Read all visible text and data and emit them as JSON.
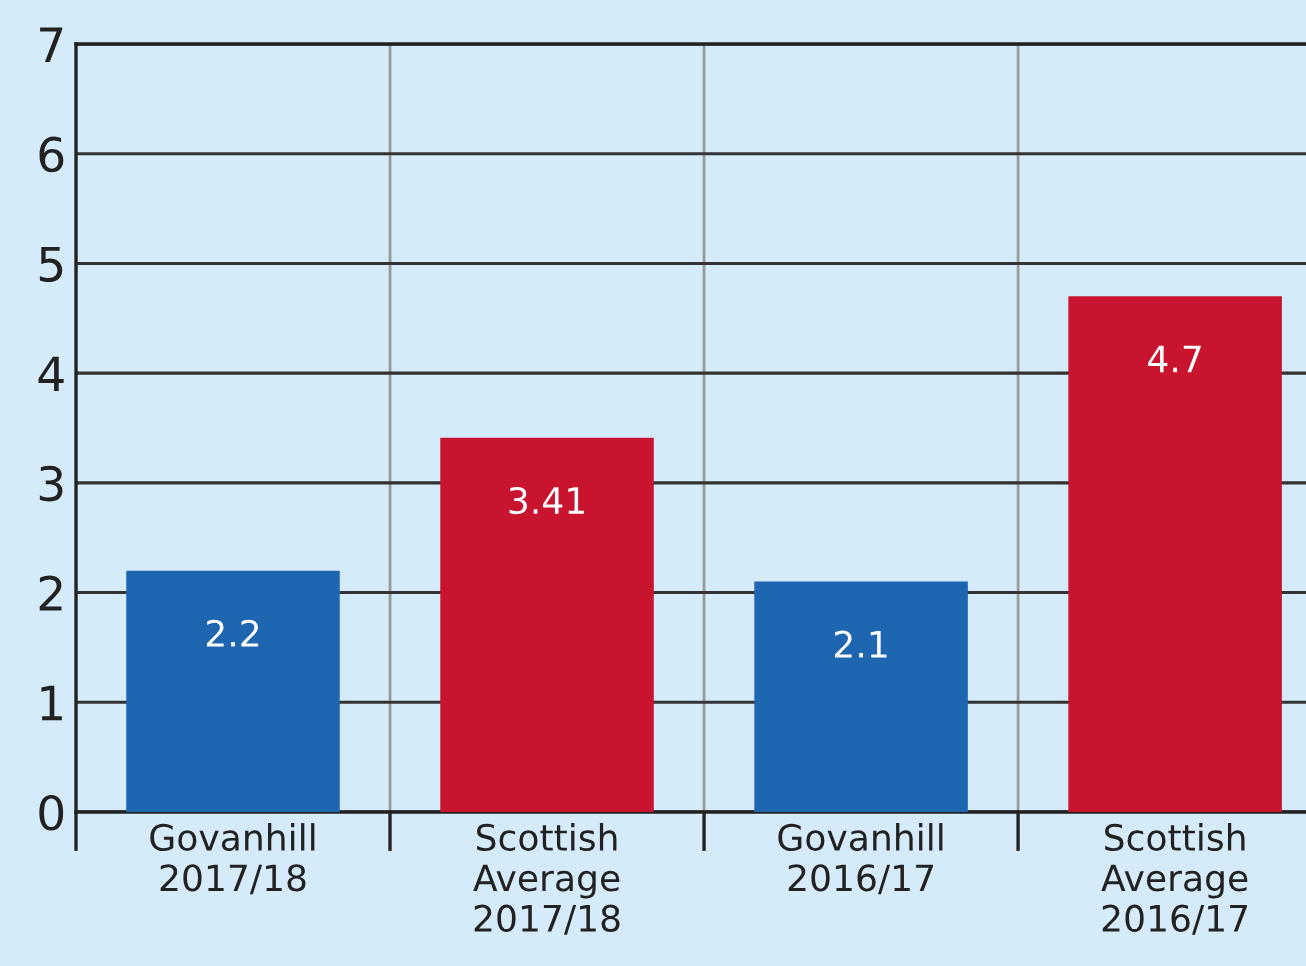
{
  "chart_data": {
    "type": "bar",
    "categories": [
      "Govanhill\n2017/18",
      "Scottish\nAverage\n2017/18",
      "Govanhill\n2016/17",
      "Scottish\nAverage\n2016/17"
    ],
    "values": [
      2.2,
      3.41,
      2.1,
      4.7
    ],
    "colors": [
      "#1f66b1",
      "#c8142f",
      "#1f66b1",
      "#c8142f"
    ],
    "ylim": [
      0,
      7
    ],
    "yticks": [
      0,
      1,
      2,
      3,
      4,
      5,
      6,
      7
    ],
    "grid": true,
    "data_labels": true
  }
}
